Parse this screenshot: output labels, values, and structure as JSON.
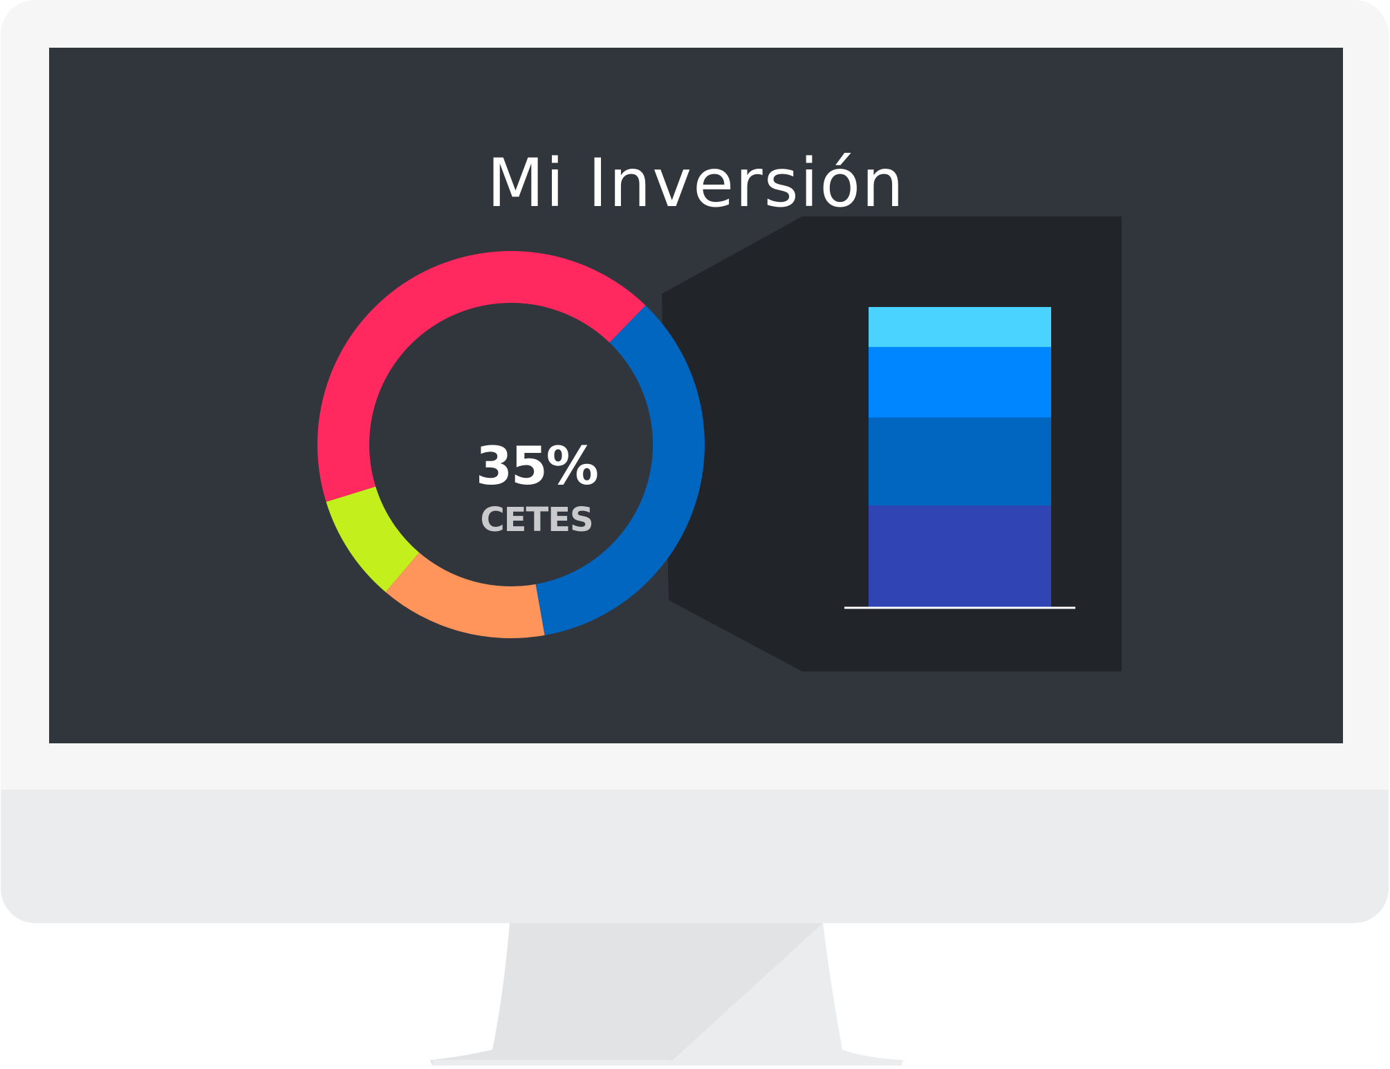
{
  "screen": {
    "title": "Mi Inversión"
  },
  "chart_data": [
    {
      "type": "pie",
      "variant": "donut",
      "center_value": "35%",
      "center_label": "CETES",
      "series": [
        {
          "value": 35,
          "color": "#0066c0"
        },
        {
          "value": 14,
          "color": "#ff955a"
        },
        {
          "value": 9,
          "color": "#c3ef1c"
        },
        {
          "value": 42,
          "color": "#ff285f"
        }
      ]
    },
    {
      "type": "bar",
      "variant": "stacked",
      "categories": [
        ""
      ],
      "series": [
        {
          "values": [
            23
          ],
          "color": "#3144b4"
        },
        {
          "values": [
            20
          ],
          "color": "#0066c0"
        },
        {
          "values": [
            16
          ],
          "color": "#0087ff"
        },
        {
          "values": [
            9
          ],
          "color": "#4ad3ff"
        }
      ]
    }
  ],
  "colors": {
    "screen": "#31353c",
    "panel": "#212428",
    "bezel": "#f6f6f6",
    "chin": "#ebecee"
  }
}
